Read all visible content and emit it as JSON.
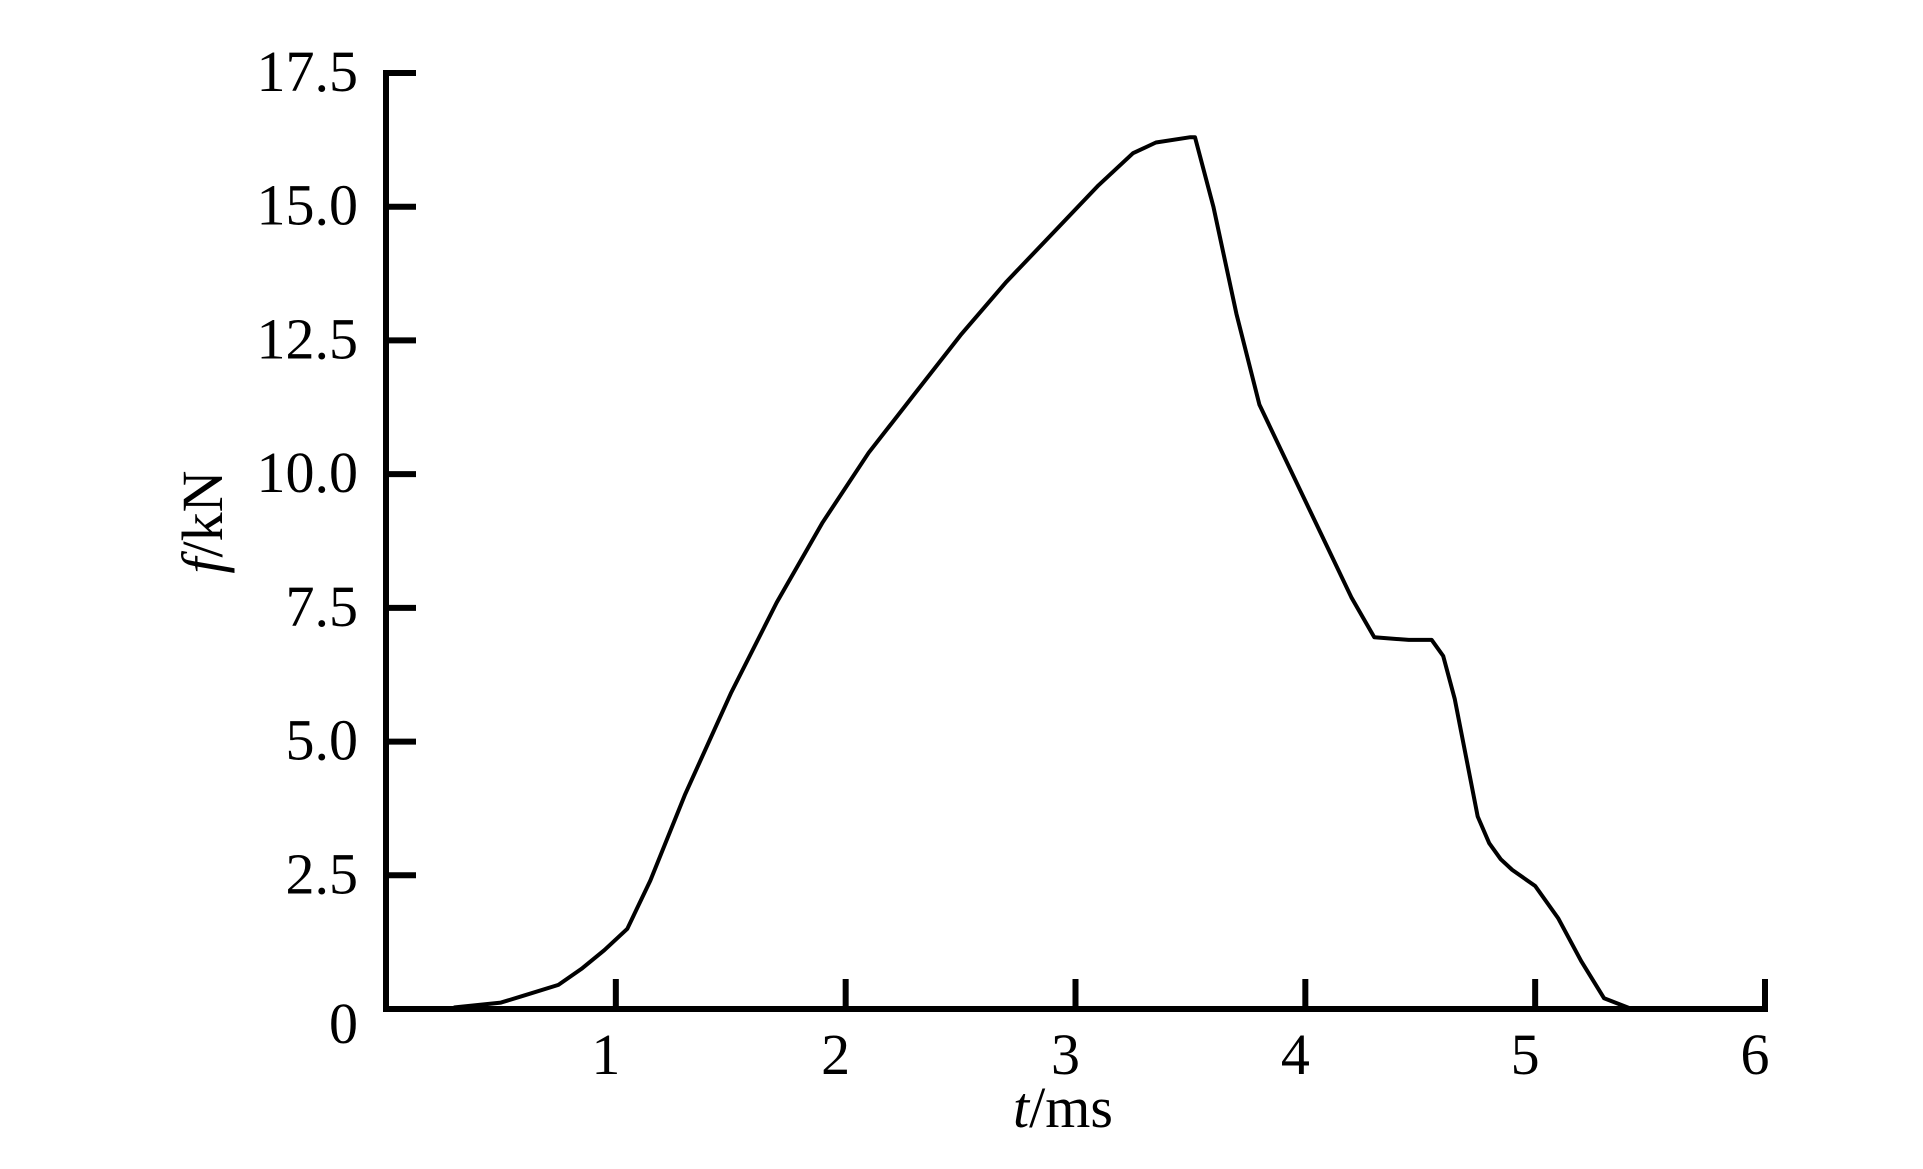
{
  "chart_data": {
    "type": "line",
    "title": "",
    "xlabel": {
      "symbol": "t",
      "unit": "/ms"
    },
    "ylabel": {
      "symbol": "f",
      "unit": "/kN"
    },
    "xlim": [
      0,
      6
    ],
    "ylim": [
      0,
      17.5
    ],
    "x_ticks": [
      {
        "value": 1,
        "label": "1"
      },
      {
        "value": 2,
        "label": "2"
      },
      {
        "value": 3,
        "label": "3"
      },
      {
        "value": 4,
        "label": "4"
      },
      {
        "value": 5,
        "label": "5"
      },
      {
        "value": 6,
        "label": "6"
      }
    ],
    "y_ticks": [
      {
        "value": 0,
        "label": "0"
      },
      {
        "value": 2.5,
        "label": "2.5"
      },
      {
        "value": 5,
        "label": "5.0"
      },
      {
        "value": 7.5,
        "label": "7.5"
      },
      {
        "value": 10,
        "label": "10.0"
      },
      {
        "value": 12.5,
        "label": "12.5"
      },
      {
        "value": 15,
        "label": "15.0"
      },
      {
        "value": 17.5,
        "label": "17.5"
      }
    ],
    "grid": false,
    "line_color": "#000000",
    "series": [
      {
        "x": [
          0.3,
          0.5,
          0.6,
          0.75,
          0.85,
          0.95,
          1.05,
          1.15,
          1.3,
          1.5,
          1.7,
          1.9,
          2.1,
          2.3,
          2.5,
          2.7,
          2.9,
          3.1,
          3.25,
          3.35,
          3.5,
          3.52,
          3.6,
          3.7,
          3.8,
          3.9,
          4.0,
          4.1,
          4.2,
          4.3,
          4.45,
          4.55,
          4.6,
          4.65,
          4.7,
          4.75,
          4.8,
          4.85,
          4.9,
          5.0,
          5.1,
          5.2,
          5.3,
          5.42
        ],
        "y": [
          0.03,
          0.12,
          0.25,
          0.45,
          0.75,
          1.1,
          1.5,
          2.4,
          4.0,
          5.9,
          7.6,
          9.1,
          10.4,
          11.5,
          12.6,
          13.6,
          14.5,
          15.4,
          16.0,
          16.2,
          16.3,
          16.3,
          15.0,
          13.0,
          11.3,
          10.4,
          9.5,
          8.6,
          7.7,
          6.95,
          6.9,
          6.9,
          6.6,
          5.8,
          4.7,
          3.6,
          3.1,
          2.8,
          2.6,
          2.3,
          1.7,
          0.9,
          0.2,
          0.0
        ]
      }
    ]
  }
}
